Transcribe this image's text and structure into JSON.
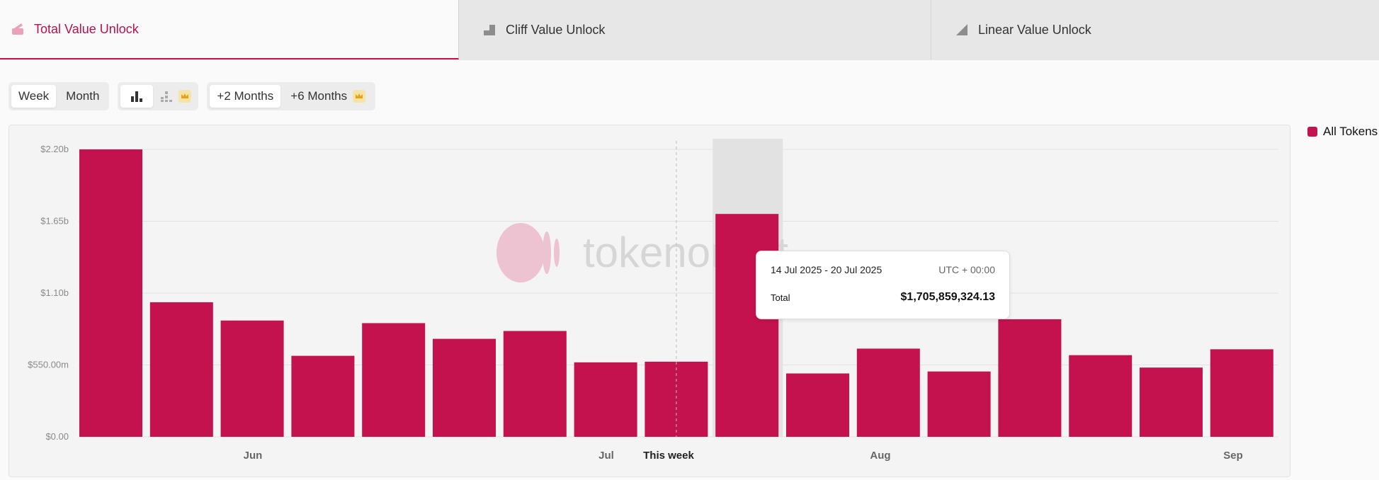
{
  "tabs": [
    {
      "label": "Total Value Unlock",
      "icon": "total-unlock-icon",
      "active": true
    },
    {
      "label": "Cliff Value Unlock",
      "icon": "cliff-unlock-icon",
      "active": false
    },
    {
      "label": "Linear Value Unlock",
      "icon": "linear-unlock-icon",
      "active": false
    }
  ],
  "toolbar": {
    "period": [
      "Week",
      "Month"
    ],
    "period_selected": "Week",
    "chart_types": [
      "bar-chart-icon",
      "stacked-bar-chart-icon"
    ],
    "range": [
      "+2 Months",
      "+6 Months"
    ],
    "range_selected": "+2 Months",
    "premium_icon": "crown-icon"
  },
  "legend": {
    "label": "All Tokens",
    "color": "#c4124e"
  },
  "watermark": "tokenomist",
  "tooltip": {
    "range": "14 Jul 2025 - 20 Jul 2025",
    "timezone": "UTC + 00:00",
    "label": "Total",
    "value": "$1,705,859,324.13"
  },
  "colors": {
    "bar": "#c4124e",
    "accent": "#b5134e",
    "highlight": "#e3e2e3"
  },
  "chart_data": {
    "type": "bar",
    "y_ticks": [
      "$0.00",
      "$550.00m",
      "$1.10b",
      "$1.65b",
      "$2.20b"
    ],
    "ylim": [
      0,
      2200000000
    ],
    "values": [
      2200000000,
      1030000000,
      890000000,
      620000000,
      870000000,
      750000000,
      810000000,
      570000000,
      575000000,
      1705859324.13,
      485000000,
      675000000,
      500000000,
      900000000,
      625000000,
      530000000,
      670000000
    ],
    "x_labels": [
      "Jun",
      "Jul",
      "This week",
      "Aug",
      "Sep"
    ],
    "highlight_index": 9,
    "current_week_index": 8,
    "series": [
      {
        "name": "All Tokens",
        "color": "#c4124e"
      }
    ],
    "legend_position": "right",
    "grid": true
  }
}
